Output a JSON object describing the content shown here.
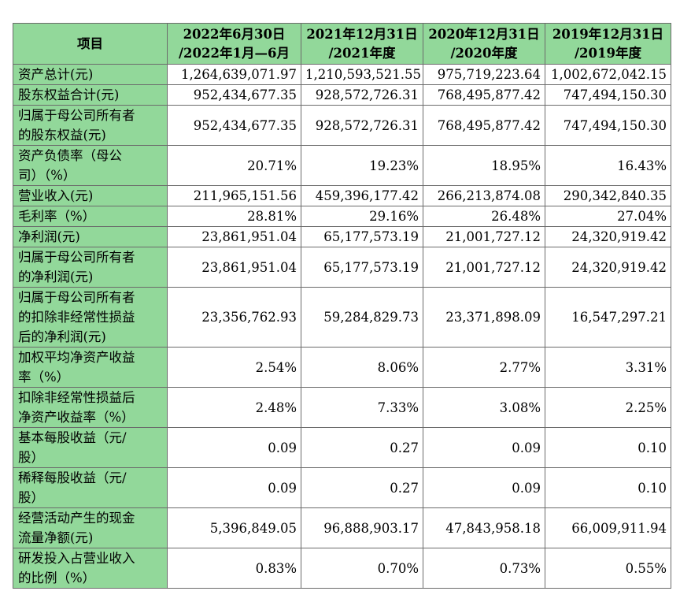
{
  "header": {
    "item": "项目",
    "periods": [
      [
        "2022年6月30日",
        "/2022年1月—6月"
      ],
      [
        "2021年12月31日",
        "/2021年度"
      ],
      [
        "2020年12月31日",
        "/2020年度"
      ],
      [
        "2019年12月31日",
        "/2019年度"
      ]
    ]
  },
  "rows": [
    {
      "label": [
        "资产总计(元)"
      ],
      "values": [
        "1,264,639,071.97",
        "1,210,593,521.55",
        "975,719,223.64",
        "1,002,672,042.15"
      ]
    },
    {
      "label": [
        "股东权益合计(元)"
      ],
      "values": [
        "952,434,677.35",
        "928,572,726.31",
        "768,495,877.42",
        "747,494,150.30"
      ]
    },
    {
      "label": [
        "归属于母公司所有者",
        "的股东权益(元)"
      ],
      "values": [
        "952,434,677.35",
        "928,572,726.31",
        "768,495,877.42",
        "747,494,150.30"
      ]
    },
    {
      "label": [
        "资产负债率（母公",
        "司）（%）"
      ],
      "values": [
        "20.71%",
        "19.23%",
        "18.95%",
        "16.43%"
      ]
    },
    {
      "label": [
        "营业收入(元)"
      ],
      "values": [
        "211,965,151.56",
        "459,396,177.42",
        "266,213,874.08",
        "290,342,840.35"
      ]
    },
    {
      "label": [
        "毛利率（%）"
      ],
      "values": [
        "28.81%",
        "29.16%",
        "26.48%",
        "27.04%"
      ]
    },
    {
      "label": [
        "净利润(元)"
      ],
      "values": [
        "23,861,951.04",
        "65,177,573.19",
        "21,001,727.12",
        "24,320,919.42"
      ]
    },
    {
      "label": [
        "归属于母公司所有者",
        "的净利润(元)"
      ],
      "values": [
        "23,861,951.04",
        "65,177,573.19",
        "21,001,727.12",
        "24,320,919.42"
      ]
    },
    {
      "label": [
        "归属于母公司所有者",
        "的扣除非经常性损益",
        "后的净利润(元)"
      ],
      "values": [
        "23,356,762.93",
        "59,284,829.73",
        "23,371,898.09",
        "16,547,297.21"
      ]
    },
    {
      "label": [
        "加权平均净资产收益",
        "率（%）"
      ],
      "values": [
        "2.54%",
        "8.06%",
        "2.77%",
        "3.31%"
      ]
    },
    {
      "label": [
        "扣除非经常性损益后",
        "净资产收益率（%）"
      ],
      "values": [
        "2.48%",
        "7.33%",
        "3.08%",
        "2.25%"
      ]
    },
    {
      "label": [
        "基本每股收益（元/",
        "股）"
      ],
      "values": [
        "0.09",
        "0.27",
        "0.09",
        "0.10"
      ]
    },
    {
      "label": [
        "稀释每股收益（元/",
        "股）"
      ],
      "values": [
        "0.09",
        "0.27",
        "0.09",
        "0.10"
      ]
    },
    {
      "label": [
        "经营活动产生的现金",
        "流量净额(元)"
      ],
      "values": [
        "5,396,849.05",
        "96,888,903.17",
        "47,843,958.18",
        "66,009,911.94"
      ]
    },
    {
      "label": [
        "研发投入占营业收入",
        "的比例（%）"
      ],
      "values": [
        "0.83%",
        "0.70%",
        "0.73%",
        "0.55%"
      ]
    }
  ]
}
